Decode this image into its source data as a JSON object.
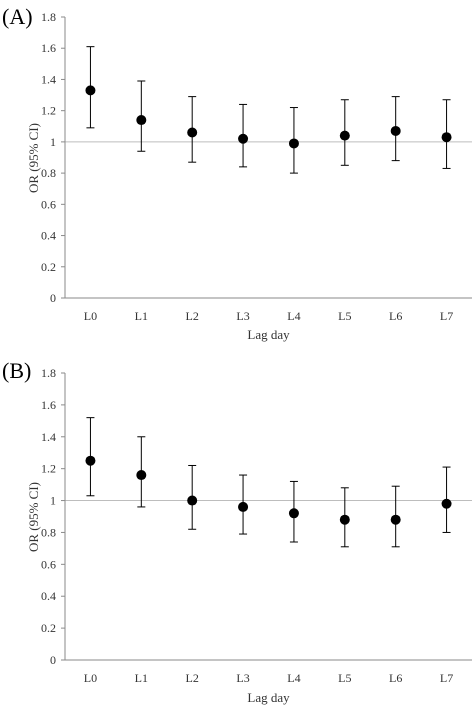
{
  "chart_data": [
    {
      "type": "scatter",
      "panel_label": "(A)",
      "categories": [
        "L0",
        "L1",
        "L2",
        "L3",
        "L4",
        "L5",
        "L6",
        "L7"
      ],
      "or": [
        1.33,
        1.14,
        1.06,
        1.02,
        0.99,
        1.04,
        1.07,
        1.03
      ],
      "ci_lower": [
        1.09,
        0.94,
        0.87,
        0.84,
        0.8,
        0.85,
        0.88,
        0.83
      ],
      "ci_upper": [
        1.61,
        1.39,
        1.29,
        1.24,
        1.22,
        1.27,
        1.29,
        1.27
      ],
      "xlabel": "Lag day",
      "ylabel": "OR (95% CI)",
      "ylim": [
        0,
        1.8
      ],
      "yticks": [
        "0",
        "0.2",
        "0.4",
        "0.6",
        "0.8",
        "1",
        "1.2",
        "1.4",
        "1.6",
        "1.8"
      ],
      "reference_line": 1,
      "grid": false
    },
    {
      "type": "scatter",
      "panel_label": "(B)",
      "categories": [
        "L0",
        "L1",
        "L2",
        "L3",
        "L4",
        "L5",
        "L6",
        "L7"
      ],
      "or": [
        1.25,
        1.16,
        1.0,
        0.96,
        0.92,
        0.88,
        0.88,
        0.98
      ],
      "ci_lower": [
        1.03,
        0.96,
        0.82,
        0.79,
        0.74,
        0.71,
        0.71,
        0.8
      ],
      "ci_upper": [
        1.52,
        1.4,
        1.22,
        1.16,
        1.12,
        1.08,
        1.09,
        1.21
      ],
      "xlabel": "Lag day",
      "ylabel": "OR (95% CI)",
      "ylim": [
        0,
        1.8
      ],
      "yticks": [
        "0",
        "0.2",
        "0.4",
        "0.6",
        "0.8",
        "1",
        "1.2",
        "1.4",
        "1.6",
        "1.8"
      ],
      "reference_line": 1,
      "grid": false
    }
  ]
}
